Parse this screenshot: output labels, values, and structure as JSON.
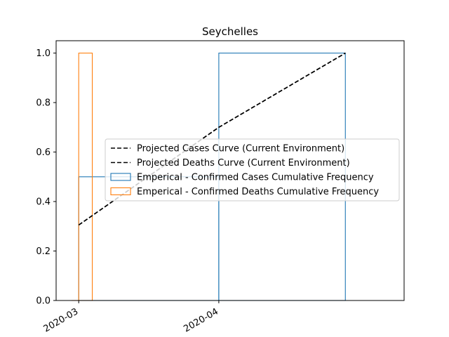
{
  "chart_data": {
    "type": "line",
    "title": "Seychelles",
    "xlabel": "",
    "ylabel": "",
    "x_axis": {
      "type": "date",
      "range": [
        "2020-02-25",
        "2020-05-12"
      ],
      "ticks": [
        {
          "date": "2020-03-01",
          "label": "2020-03"
        },
        {
          "date": "2020-04-01",
          "label": "2020-04"
        }
      ]
    },
    "ylim": [
      0,
      1.05
    ],
    "yticks": [
      {
        "value": 0.0,
        "label": "0.0"
      },
      {
        "value": 0.2,
        "label": "0.2"
      },
      {
        "value": 0.4,
        "label": "0.4"
      },
      {
        "value": 0.6,
        "label": "0.6"
      },
      {
        "value": 0.8,
        "label": "0.8"
      },
      {
        "value": 1.0,
        "label": "1.0"
      }
    ],
    "grid": false,
    "legend_position": "center-right",
    "series": [
      {
        "name": "Projected Cases Curve (Current Environment)",
        "kind": "line",
        "color": "#000000",
        "dash": "dashed",
        "x": [
          "2020-03-01",
          "2020-04-01",
          "2020-04-29"
        ],
        "y": [
          0.305,
          0.7,
          1.0
        ]
      },
      {
        "name": "Projected Deaths Curve (Current Environment)",
        "kind": "line",
        "color": "#000000",
        "dash": "dashed",
        "x": [
          "2020-03-01",
          "2020-04-01",
          "2020-04-29"
        ],
        "y": [
          0.305,
          0.7,
          1.0
        ]
      },
      {
        "name": "Emperical - Confirmed Cases Cumulative Frequency",
        "kind": "step-histogram",
        "color": "#1f77b4",
        "bins": [
          {
            "start": "2020-03-01",
            "end": "2020-04-01",
            "value": 0.5
          },
          {
            "start": "2020-04-01",
            "end": "2020-04-29",
            "value": 1.0
          }
        ]
      },
      {
        "name": "Emperical - Confirmed Deaths Cumulative Frequency",
        "kind": "step-histogram",
        "color": "#ff7f0e",
        "bins": [
          {
            "start": "2020-03-01",
            "end": "2020-03-04",
            "value": 1.0
          }
        ]
      }
    ]
  }
}
